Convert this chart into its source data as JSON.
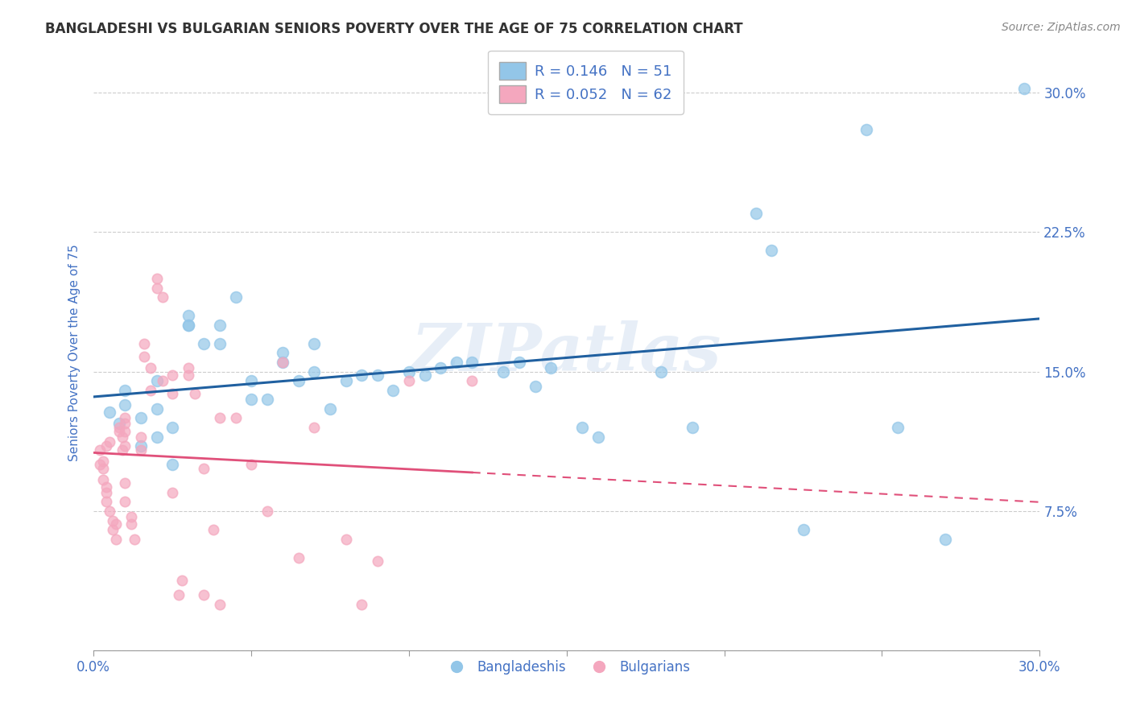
{
  "title": "BANGLADESHI VS BULGARIAN SENIORS POVERTY OVER THE AGE OF 75 CORRELATION CHART",
  "source": "Source: ZipAtlas.com",
  "ylabel": "Seniors Poverty Over the Age of 75",
  "xlim": [
    0.0,
    0.3
  ],
  "ylim": [
    0.0,
    0.32
  ],
  "xticks": [
    0.0,
    0.05,
    0.1,
    0.15,
    0.2,
    0.25,
    0.3
  ],
  "yticks": [
    0.0,
    0.075,
    0.15,
    0.225,
    0.3
  ],
  "ytick_labels_right": [
    "",
    "7.5%",
    "15.0%",
    "22.5%",
    "30.0%"
  ],
  "grid_color": "#cccccc",
  "background_color": "#ffffff",
  "watermark": "ZIPatlas",
  "legend_blue_label": "Bangladeshis",
  "legend_pink_label": "Bulgarians",
  "blue_R": 0.146,
  "blue_N": 51,
  "pink_R": 0.052,
  "pink_N": 62,
  "blue_color": "#93c6e8",
  "pink_color": "#f4a7be",
  "blue_line_color": "#2060a0",
  "pink_line_color": "#e0507a",
  "title_color": "#333333",
  "axis_label_color": "#4472c4",
  "blue_scatter_x": [
    0.005,
    0.008,
    0.01,
    0.01,
    0.015,
    0.015,
    0.02,
    0.02,
    0.02,
    0.025,
    0.025,
    0.03,
    0.03,
    0.03,
    0.035,
    0.04,
    0.04,
    0.045,
    0.05,
    0.05,
    0.055,
    0.06,
    0.06,
    0.065,
    0.07,
    0.07,
    0.075,
    0.08,
    0.085,
    0.09,
    0.095,
    0.1,
    0.105,
    0.11,
    0.115,
    0.12,
    0.13,
    0.135,
    0.14,
    0.145,
    0.155,
    0.16,
    0.18,
    0.19,
    0.21,
    0.215,
    0.225,
    0.245,
    0.255,
    0.27,
    0.295
  ],
  "blue_scatter_y": [
    0.128,
    0.122,
    0.14,
    0.132,
    0.11,
    0.125,
    0.115,
    0.13,
    0.145,
    0.1,
    0.12,
    0.175,
    0.18,
    0.175,
    0.165,
    0.165,
    0.175,
    0.19,
    0.145,
    0.135,
    0.135,
    0.155,
    0.16,
    0.145,
    0.15,
    0.165,
    0.13,
    0.145,
    0.148,
    0.148,
    0.14,
    0.15,
    0.148,
    0.152,
    0.155,
    0.155,
    0.15,
    0.155,
    0.142,
    0.152,
    0.12,
    0.115,
    0.15,
    0.12,
    0.235,
    0.215,
    0.065,
    0.28,
    0.12,
    0.06,
    0.302
  ],
  "pink_scatter_x": [
    0.002,
    0.002,
    0.003,
    0.003,
    0.003,
    0.004,
    0.004,
    0.004,
    0.004,
    0.005,
    0.005,
    0.006,
    0.006,
    0.007,
    0.007,
    0.008,
    0.008,
    0.009,
    0.009,
    0.01,
    0.01,
    0.01,
    0.01,
    0.01,
    0.01,
    0.012,
    0.012,
    0.013,
    0.015,
    0.015,
    0.016,
    0.016,
    0.018,
    0.018,
    0.02,
    0.02,
    0.022,
    0.022,
    0.025,
    0.025,
    0.025,
    0.027,
    0.028,
    0.03,
    0.03,
    0.032,
    0.035,
    0.035,
    0.038,
    0.04,
    0.04,
    0.045,
    0.05,
    0.055,
    0.06,
    0.065,
    0.07,
    0.08,
    0.085,
    0.09,
    0.1,
    0.12
  ],
  "pink_scatter_y": [
    0.1,
    0.108,
    0.092,
    0.098,
    0.102,
    0.08,
    0.085,
    0.088,
    0.11,
    0.075,
    0.112,
    0.065,
    0.07,
    0.06,
    0.068,
    0.12,
    0.118,
    0.115,
    0.108,
    0.125,
    0.122,
    0.118,
    0.11,
    0.09,
    0.08,
    0.072,
    0.068,
    0.06,
    0.115,
    0.108,
    0.165,
    0.158,
    0.152,
    0.14,
    0.195,
    0.2,
    0.19,
    0.145,
    0.148,
    0.138,
    0.085,
    0.03,
    0.038,
    0.152,
    0.148,
    0.138,
    0.098,
    0.03,
    0.065,
    0.025,
    0.125,
    0.125,
    0.1,
    0.075,
    0.155,
    0.05,
    0.12,
    0.06,
    0.025,
    0.048,
    0.145,
    0.145
  ]
}
